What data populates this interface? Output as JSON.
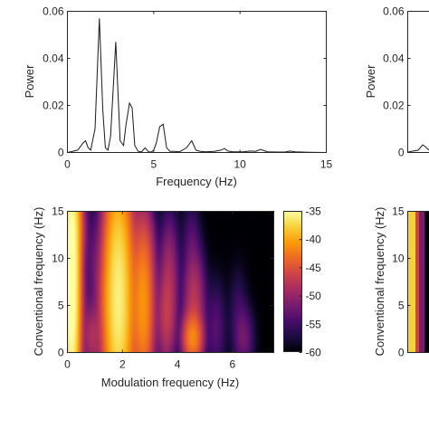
{
  "chart_data": [
    {
      "type": "line",
      "xlabel": "Frequency (Hz)",
      "ylabel": "Power",
      "xlim": [
        0,
        15
      ],
      "ylim": [
        0,
        0.06
      ],
      "xticks": [
        "0",
        "5",
        "10",
        "15"
      ],
      "yticks": [
        "0",
        "0.02",
        "0.04",
        "0.06"
      ],
      "grid": false,
      "series": [
        {
          "x": [
            0,
            0.6,
            0.9,
            1.05,
            1.2,
            1.35,
            1.6,
            1.85,
            2.05,
            2.2,
            2.35,
            2.5,
            2.8,
            3.05,
            3.25,
            3.4,
            3.6,
            3.75,
            3.9,
            4.1,
            4.3,
            4.5,
            4.7,
            4.85,
            5.0,
            5.15,
            5.35,
            5.55,
            5.75,
            5.95,
            6.2,
            6.5,
            6.9,
            7.2,
            7.45,
            7.7,
            8.0,
            8.5,
            8.9,
            9.1,
            9.3,
            9.6,
            10.2,
            10.6,
            10.9,
            11.2,
            11.6,
            12.2,
            12.6,
            12.9,
            13.2,
            14.0,
            15.0
          ],
          "y": [
            0,
            0.001,
            0.004,
            0.005,
            0.002,
            0.001,
            0.01,
            0.057,
            0.018,
            0.002,
            0.001,
            0.007,
            0.047,
            0.005,
            0.003,
            0.012,
            0.021,
            0.019,
            0.003,
            0.0005,
            0.0003,
            0.002,
            0.0003,
            0.0002,
            0.001,
            0.004,
            0.011,
            0.012,
            0.002,
            0.0005,
            0.0005,
            0.0003,
            0.002,
            0.005,
            0.001,
            0.0005,
            0.0003,
            0.0005,
            0.001,
            0.0017,
            0.0006,
            0.0003,
            0.0003,
            0.0006,
            0.0005,
            0.0013,
            0.0003,
            0.0002,
            0.0002,
            0.0006,
            0.0003,
            0.0001,
            0
          ]
        }
      ]
    },
    {
      "type": "heatmap",
      "xlabel": "Modulation frequency (Hz)",
      "ylabel": "Conventional frequency (Hz)",
      "xlim": [
        0,
        7.5
      ],
      "ylim": [
        0,
        15
      ],
      "xticks": [
        "0",
        "2",
        "4",
        "6"
      ],
      "yticks": [
        "0",
        "5",
        "10",
        "15"
      ],
      "colorbar": {
        "min": -60,
        "max": -35,
        "ticks": [
          "-35",
          "-40",
          "-45",
          "-50",
          "-55",
          "-60"
        ],
        "colormap": "inferno",
        "colors": [
          "#000004",
          "#1b0c41",
          "#4a0c6b",
          "#781c6d",
          "#a52c60",
          "#cf4446",
          "#ed6925",
          "#fb9b06",
          "#f7d13d",
          "#fcffa4"
        ]
      },
      "base_level": -60,
      "blobs": [
        {
          "mx": 0.15,
          "cf": 7.5,
          "wx": 0.16,
          "wy": 8.5,
          "db": -34
        },
        {
          "mx": 0.3,
          "cf": 13.5,
          "wx": 0.2,
          "wy": 2.5,
          "db": -45
        },
        {
          "mx": 0.45,
          "cf": 4.0,
          "wx": 0.2,
          "wy": 3.5,
          "db": -52
        },
        {
          "mx": 0.9,
          "cf": 1.5,
          "wx": 0.18,
          "wy": 2.0,
          "db": -49
        },
        {
          "mx": 0.95,
          "cf": 9.5,
          "wx": 0.18,
          "wy": 3.5,
          "db": -55
        },
        {
          "mx": 1.3,
          "cf": 5.5,
          "wx": 0.18,
          "wy": 3.0,
          "db": -53
        },
        {
          "mx": 1.85,
          "cf": 5.5,
          "wx": 0.28,
          "wy": 7.0,
          "db": -36
        },
        {
          "mx": 1.8,
          "cf": 12.0,
          "wx": 0.22,
          "wy": 3.5,
          "db": -50
        },
        {
          "mx": 2.75,
          "cf": 5.0,
          "wx": 0.22,
          "wy": 5.0,
          "db": -41
        },
        {
          "mx": 2.85,
          "cf": 11.0,
          "wx": 0.2,
          "wy": 2.5,
          "db": -55
        },
        {
          "mx": 3.6,
          "cf": 3.5,
          "wx": 0.2,
          "wy": 3.0,
          "db": -48
        },
        {
          "mx": 3.7,
          "cf": 8.5,
          "wx": 0.2,
          "wy": 3.5,
          "db": -50
        },
        {
          "mx": 4.55,
          "cf": 1.5,
          "wx": 0.2,
          "wy": 1.5,
          "db": -42
        },
        {
          "mx": 4.6,
          "cf": 5.5,
          "wx": 0.22,
          "wy": 3.0,
          "db": -48
        },
        {
          "mx": 4.5,
          "cf": 12.0,
          "wx": 0.2,
          "wy": 2.5,
          "db": -56
        },
        {
          "mx": 5.4,
          "cf": 2.5,
          "wx": 0.22,
          "wy": 3.0,
          "db": -55
        },
        {
          "mx": 6.4,
          "cf": 1.5,
          "wx": 0.22,
          "wy": 2.0,
          "db": -53
        },
        {
          "mx": 6.2,
          "cf": 5.0,
          "wx": 0.2,
          "wy": 2.5,
          "db": -58
        }
      ]
    },
    {
      "type": "line",
      "partial": true,
      "ylabel": "Power",
      "ylim": [
        0,
        0.06
      ],
      "yticks": [
        "0",
        "0.02",
        "0.04",
        "0.06"
      ]
    },
    {
      "type": "heatmap",
      "partial": true,
      "ylabel": "Conventional frequency (Hz)",
      "ylim": [
        0,
        15
      ],
      "yticks": [
        "0",
        "5",
        "10",
        "15"
      ]
    }
  ]
}
